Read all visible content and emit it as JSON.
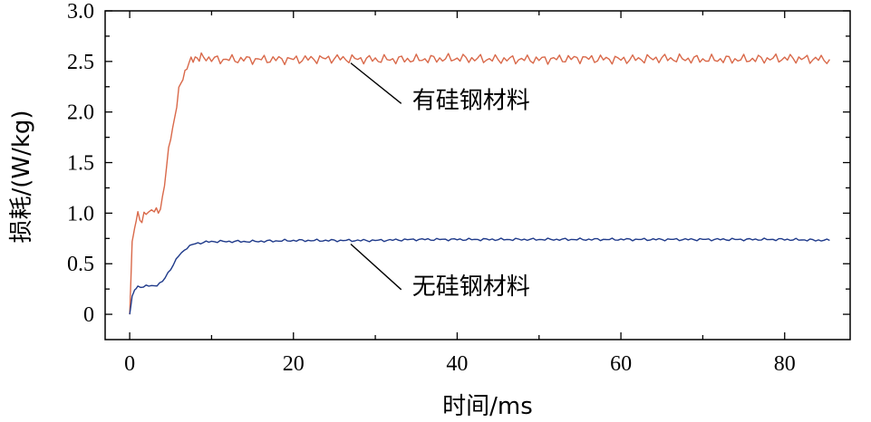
{
  "chart_data": {
    "type": "line",
    "title": "",
    "xlabel": "时间/ms",
    "ylabel": "损耗/(W/kg)",
    "xlim": [
      -3,
      88
    ],
    "ylim": [
      -0.25,
      3.0
    ],
    "xticks": [
      0,
      20,
      40,
      60,
      80
    ],
    "xtick_labels": [
      "0",
      "20",
      "40",
      "60",
      "80"
    ],
    "yticks": [
      0,
      0.5,
      1.0,
      1.5,
      2.0,
      2.5,
      3.0
    ],
    "ytick_labels": [
      "0",
      "0.5",
      "1.0",
      "1.5",
      "2.0",
      "2.5",
      "3.0"
    ],
    "grid": false,
    "legend": "none",
    "series": [
      {
        "name": "有硅钢材料",
        "color": "#d9694a",
        "x": [
          0,
          0.3,
          0.6,
          1,
          1.5,
          2,
          3,
          3.5,
          4,
          4.5,
          5,
          5.5,
          6,
          6.5,
          7,
          7.5,
          8,
          8.5,
          9,
          10,
          15,
          20,
          25,
          30,
          35,
          40,
          45,
          50,
          55,
          60,
          65,
          70,
          75,
          80,
          85.5
        ],
        "values": [
          0.0,
          0.72,
          0.85,
          1.0,
          0.92,
          1.0,
          1.05,
          0.98,
          1.15,
          1.45,
          1.75,
          1.95,
          2.2,
          2.35,
          2.45,
          2.5,
          2.55,
          2.52,
          2.55,
          2.52,
          2.52,
          2.52,
          2.53,
          2.52,
          2.52,
          2.53,
          2.52,
          2.52,
          2.53,
          2.52,
          2.53,
          2.52,
          2.52,
          2.53,
          2.52
        ]
      },
      {
        "name": "无硅钢材料",
        "color": "#1f3a8a",
        "x": [
          0,
          0.3,
          0.6,
          1,
          2,
          3,
          4,
          5,
          6,
          7,
          8,
          9,
          10,
          15,
          20,
          25,
          30,
          35,
          40,
          45,
          50,
          55,
          60,
          65,
          70,
          75,
          80,
          85.5
        ],
        "values": [
          0.0,
          0.18,
          0.24,
          0.27,
          0.28,
          0.28,
          0.32,
          0.45,
          0.58,
          0.66,
          0.7,
          0.71,
          0.72,
          0.72,
          0.73,
          0.73,
          0.73,
          0.74,
          0.74,
          0.74,
          0.74,
          0.74,
          0.74,
          0.74,
          0.74,
          0.74,
          0.74,
          0.73
        ]
      }
    ],
    "annotations": [
      {
        "text": "有硅钢材料",
        "target_x": 27,
        "target_y": 2.52,
        "text_x": 34.5,
        "text_y": 2.12
      },
      {
        "text": "无硅钢材料",
        "target_x": 27,
        "target_y": 0.73,
        "text_x": 34.5,
        "text_y": 0.28
      }
    ]
  }
}
